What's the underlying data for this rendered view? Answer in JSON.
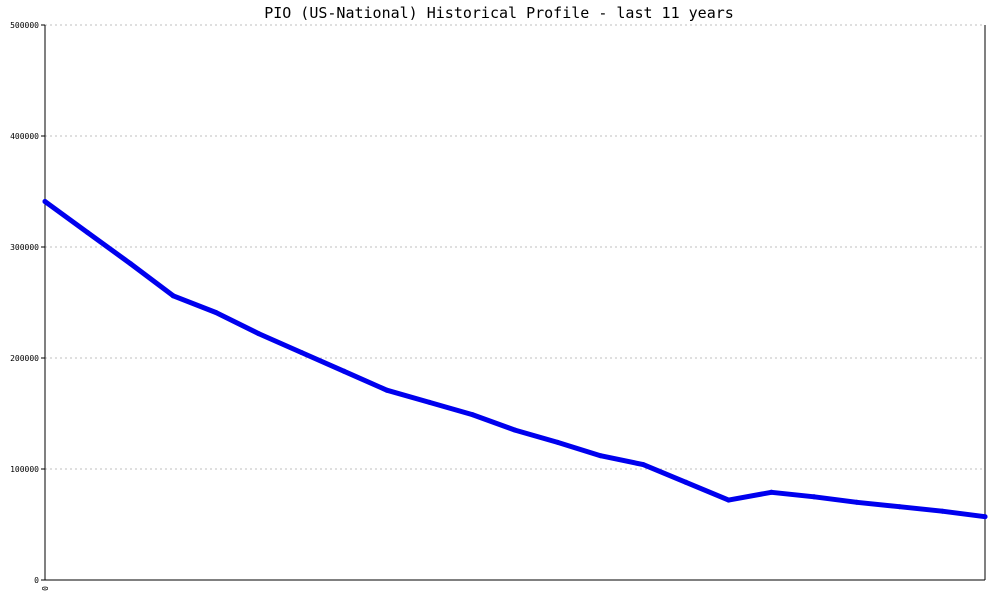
{
  "chart_data": {
    "type": "line",
    "title": "PIO (US-National) Historical Profile - last 11 years",
    "xlabel": "",
    "ylabel": "",
    "ylim": [
      0,
      500000
    ],
    "y_ticks": [
      "0",
      "100000",
      "200000",
      "300000",
      "400000",
      "500000"
    ],
    "x_ticks": [
      "0"
    ],
    "grid": true,
    "line_color": "#0000ee",
    "series": [
      {
        "values": [
          341000,
          313000,
          285000,
          256000,
          241000,
          222000,
          205000,
          188000,
          171000,
          160000,
          149000,
          135000,
          124000,
          112000,
          104000,
          88000,
          72000,
          79000,
          75000,
          70000,
          66000,
          62000,
          57000
        ]
      }
    ]
  }
}
